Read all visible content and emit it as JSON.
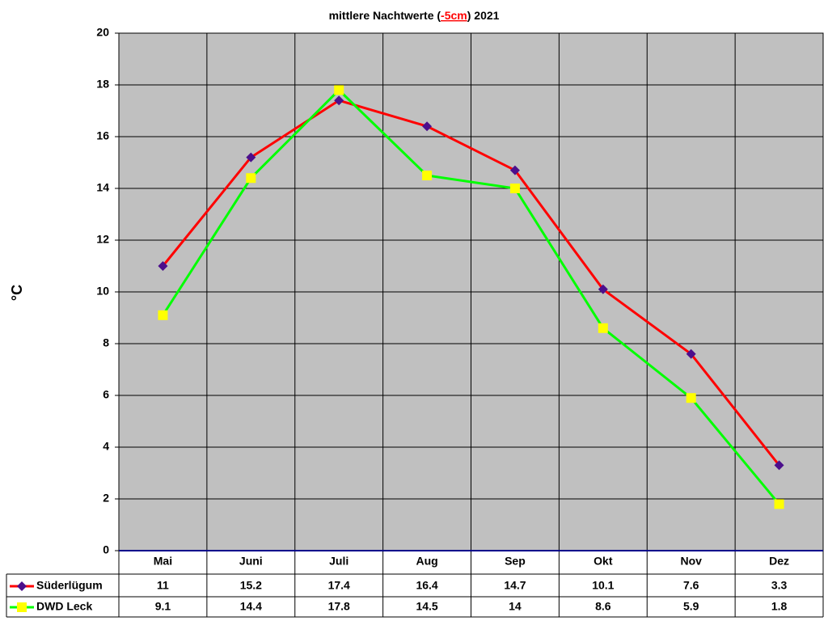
{
  "chart_data": {
    "type": "line",
    "title": [
      "mittlere Nachtwerte (",
      "-5cm",
      ") 2021"
    ],
    "title_colors": [
      "#000000",
      "#ff0000",
      "#000000"
    ],
    "y_label": "°C",
    "categories": [
      "Mai",
      "Juni",
      "Juli",
      "Aug",
      "Sep",
      "Okt",
      "Nov",
      "Dez"
    ],
    "series": [
      {
        "name": "Süderlügum",
        "color": "#ff0000",
        "marker": "diamond",
        "marker_color": "#4b0f8c",
        "values": [
          11,
          15.2,
          17.4,
          16.4,
          14.7,
          10.1,
          7.6,
          3.3
        ]
      },
      {
        "name": "DWD Leck",
        "color": "#00ff00",
        "marker": "square",
        "marker_color": "#ffff00",
        "values": [
          9.1,
          14.4,
          17.8,
          14.5,
          14,
          8.6,
          5.9,
          1.8
        ]
      }
    ],
    "ylim": [
      0,
      20
    ],
    "yticks": [
      0,
      2,
      4,
      6,
      8,
      10,
      12,
      14,
      16,
      18,
      20
    ],
    "grid": true,
    "plot_background": "#c0c0c0",
    "data_table": true
  }
}
